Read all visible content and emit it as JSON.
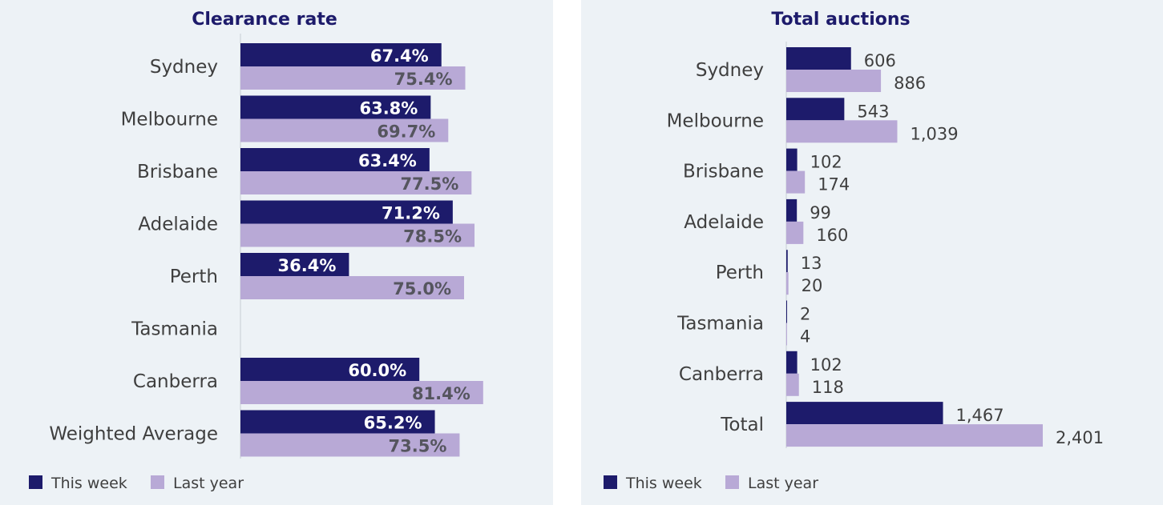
{
  "colors": {
    "this_week": "#1d1b6b",
    "last_year": "#b8a9d6",
    "background": "#edf2f6"
  },
  "legend": {
    "this_week_label": "This week",
    "last_year_label": "Last year"
  },
  "chart_data": [
    {
      "type": "bar",
      "orientation": "horizontal",
      "title": "Clearance rate",
      "categories": [
        "Sydney",
        "Melbourne",
        "Brisbane",
        "Adelaide",
        "Perth",
        "Tasmania",
        "Canberra",
        "Weighted Average"
      ],
      "series": [
        {
          "name": "This week",
          "values": [
            67.4,
            63.8,
            63.4,
            71.2,
            36.4,
            null,
            60.0,
            65.2
          ],
          "labels": [
            "67.4%",
            "63.8%",
            "63.4%",
            "71.2%",
            "36.4%",
            "",
            "60.0%",
            "65.2%"
          ]
        },
        {
          "name": "Last year",
          "values": [
            75.4,
            69.7,
            77.5,
            78.5,
            75.0,
            null,
            81.4,
            73.5
          ],
          "labels": [
            "75.4%",
            "69.7%",
            "77.5%",
            "78.5%",
            "75.0%",
            "",
            "81.4%",
            "73.5%"
          ]
        }
      ],
      "xlim": [
        0,
        100
      ],
      "label_position": "inside-end",
      "legend_position": "bottom-left",
      "grid": false
    },
    {
      "type": "bar",
      "orientation": "horizontal",
      "title": "Total auctions",
      "categories": [
        "Sydney",
        "Melbourne",
        "Brisbane",
        "Adelaide",
        "Perth",
        "Tasmania",
        "Canberra",
        "Total"
      ],
      "series": [
        {
          "name": "This week",
          "values": [
            606,
            543,
            102,
            99,
            13,
            2,
            102,
            1467
          ],
          "labels": [
            "606",
            "543",
            "102",
            "99",
            "13",
            "2",
            "102",
            "1,467"
          ]
        },
        {
          "name": "Last year",
          "values": [
            886,
            1039,
            174,
            160,
            20,
            4,
            118,
            2401
          ],
          "labels": [
            "886",
            "1,039",
            "174",
            "160",
            "20",
            "4",
            "118",
            "2,401"
          ]
        }
      ],
      "xlim": [
        0,
        2401
      ],
      "label_position": "outside-end",
      "legend_position": "bottom-left",
      "grid": false
    }
  ]
}
